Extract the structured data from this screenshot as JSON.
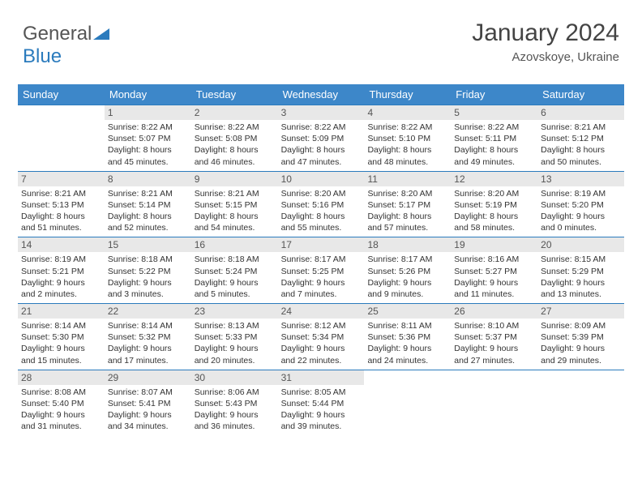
{
  "brand": {
    "part1": "General",
    "part2": "Blue",
    "color1": "#555555",
    "color2": "#2b7bbd"
  },
  "title": "January 2024",
  "location": "Azovskoye, Ukraine",
  "header_bg": "#3d87c9",
  "header_fg": "#ffffff",
  "daybar_bg": "#e8e8e8",
  "border_color": "#2b7bbd",
  "bg": "#ffffff",
  "text_color": "#333333",
  "day_names": [
    "Sunday",
    "Monday",
    "Tuesday",
    "Wednesday",
    "Thursday",
    "Friday",
    "Saturday"
  ],
  "weeks": [
    [
      null,
      {
        "n": "1",
        "sr": "Sunrise: 8:22 AM",
        "ss": "Sunset: 5:07 PM",
        "d1": "Daylight: 8 hours",
        "d2": "and 45 minutes."
      },
      {
        "n": "2",
        "sr": "Sunrise: 8:22 AM",
        "ss": "Sunset: 5:08 PM",
        "d1": "Daylight: 8 hours",
        "d2": "and 46 minutes."
      },
      {
        "n": "3",
        "sr": "Sunrise: 8:22 AM",
        "ss": "Sunset: 5:09 PM",
        "d1": "Daylight: 8 hours",
        "d2": "and 47 minutes."
      },
      {
        "n": "4",
        "sr": "Sunrise: 8:22 AM",
        "ss": "Sunset: 5:10 PM",
        "d1": "Daylight: 8 hours",
        "d2": "and 48 minutes."
      },
      {
        "n": "5",
        "sr": "Sunrise: 8:22 AM",
        "ss": "Sunset: 5:11 PM",
        "d1": "Daylight: 8 hours",
        "d2": "and 49 minutes."
      },
      {
        "n": "6",
        "sr": "Sunrise: 8:21 AM",
        "ss": "Sunset: 5:12 PM",
        "d1": "Daylight: 8 hours",
        "d2": "and 50 minutes."
      }
    ],
    [
      {
        "n": "7",
        "sr": "Sunrise: 8:21 AM",
        "ss": "Sunset: 5:13 PM",
        "d1": "Daylight: 8 hours",
        "d2": "and 51 minutes."
      },
      {
        "n": "8",
        "sr": "Sunrise: 8:21 AM",
        "ss": "Sunset: 5:14 PM",
        "d1": "Daylight: 8 hours",
        "d2": "and 52 minutes."
      },
      {
        "n": "9",
        "sr": "Sunrise: 8:21 AM",
        "ss": "Sunset: 5:15 PM",
        "d1": "Daylight: 8 hours",
        "d2": "and 54 minutes."
      },
      {
        "n": "10",
        "sr": "Sunrise: 8:20 AM",
        "ss": "Sunset: 5:16 PM",
        "d1": "Daylight: 8 hours",
        "d2": "and 55 minutes."
      },
      {
        "n": "11",
        "sr": "Sunrise: 8:20 AM",
        "ss": "Sunset: 5:17 PM",
        "d1": "Daylight: 8 hours",
        "d2": "and 57 minutes."
      },
      {
        "n": "12",
        "sr": "Sunrise: 8:20 AM",
        "ss": "Sunset: 5:19 PM",
        "d1": "Daylight: 8 hours",
        "d2": "and 58 minutes."
      },
      {
        "n": "13",
        "sr": "Sunrise: 8:19 AM",
        "ss": "Sunset: 5:20 PM",
        "d1": "Daylight: 9 hours",
        "d2": "and 0 minutes."
      }
    ],
    [
      {
        "n": "14",
        "sr": "Sunrise: 8:19 AM",
        "ss": "Sunset: 5:21 PM",
        "d1": "Daylight: 9 hours",
        "d2": "and 2 minutes."
      },
      {
        "n": "15",
        "sr": "Sunrise: 8:18 AM",
        "ss": "Sunset: 5:22 PM",
        "d1": "Daylight: 9 hours",
        "d2": "and 3 minutes."
      },
      {
        "n": "16",
        "sr": "Sunrise: 8:18 AM",
        "ss": "Sunset: 5:24 PM",
        "d1": "Daylight: 9 hours",
        "d2": "and 5 minutes."
      },
      {
        "n": "17",
        "sr": "Sunrise: 8:17 AM",
        "ss": "Sunset: 5:25 PM",
        "d1": "Daylight: 9 hours",
        "d2": "and 7 minutes."
      },
      {
        "n": "18",
        "sr": "Sunrise: 8:17 AM",
        "ss": "Sunset: 5:26 PM",
        "d1": "Daylight: 9 hours",
        "d2": "and 9 minutes."
      },
      {
        "n": "19",
        "sr": "Sunrise: 8:16 AM",
        "ss": "Sunset: 5:27 PM",
        "d1": "Daylight: 9 hours",
        "d2": "and 11 minutes."
      },
      {
        "n": "20",
        "sr": "Sunrise: 8:15 AM",
        "ss": "Sunset: 5:29 PM",
        "d1": "Daylight: 9 hours",
        "d2": "and 13 minutes."
      }
    ],
    [
      {
        "n": "21",
        "sr": "Sunrise: 8:14 AM",
        "ss": "Sunset: 5:30 PM",
        "d1": "Daylight: 9 hours",
        "d2": "and 15 minutes."
      },
      {
        "n": "22",
        "sr": "Sunrise: 8:14 AM",
        "ss": "Sunset: 5:32 PM",
        "d1": "Daylight: 9 hours",
        "d2": "and 17 minutes."
      },
      {
        "n": "23",
        "sr": "Sunrise: 8:13 AM",
        "ss": "Sunset: 5:33 PM",
        "d1": "Daylight: 9 hours",
        "d2": "and 20 minutes."
      },
      {
        "n": "24",
        "sr": "Sunrise: 8:12 AM",
        "ss": "Sunset: 5:34 PM",
        "d1": "Daylight: 9 hours",
        "d2": "and 22 minutes."
      },
      {
        "n": "25",
        "sr": "Sunrise: 8:11 AM",
        "ss": "Sunset: 5:36 PM",
        "d1": "Daylight: 9 hours",
        "d2": "and 24 minutes."
      },
      {
        "n": "26",
        "sr": "Sunrise: 8:10 AM",
        "ss": "Sunset: 5:37 PM",
        "d1": "Daylight: 9 hours",
        "d2": "and 27 minutes."
      },
      {
        "n": "27",
        "sr": "Sunrise: 8:09 AM",
        "ss": "Sunset: 5:39 PM",
        "d1": "Daylight: 9 hours",
        "d2": "and 29 minutes."
      }
    ],
    [
      {
        "n": "28",
        "sr": "Sunrise: 8:08 AM",
        "ss": "Sunset: 5:40 PM",
        "d1": "Daylight: 9 hours",
        "d2": "and 31 minutes."
      },
      {
        "n": "29",
        "sr": "Sunrise: 8:07 AM",
        "ss": "Sunset: 5:41 PM",
        "d1": "Daylight: 9 hours",
        "d2": "and 34 minutes."
      },
      {
        "n": "30",
        "sr": "Sunrise: 8:06 AM",
        "ss": "Sunset: 5:43 PM",
        "d1": "Daylight: 9 hours",
        "d2": "and 36 minutes."
      },
      {
        "n": "31",
        "sr": "Sunrise: 8:05 AM",
        "ss": "Sunset: 5:44 PM",
        "d1": "Daylight: 9 hours",
        "d2": "and 39 minutes."
      },
      null,
      null,
      null
    ]
  ]
}
